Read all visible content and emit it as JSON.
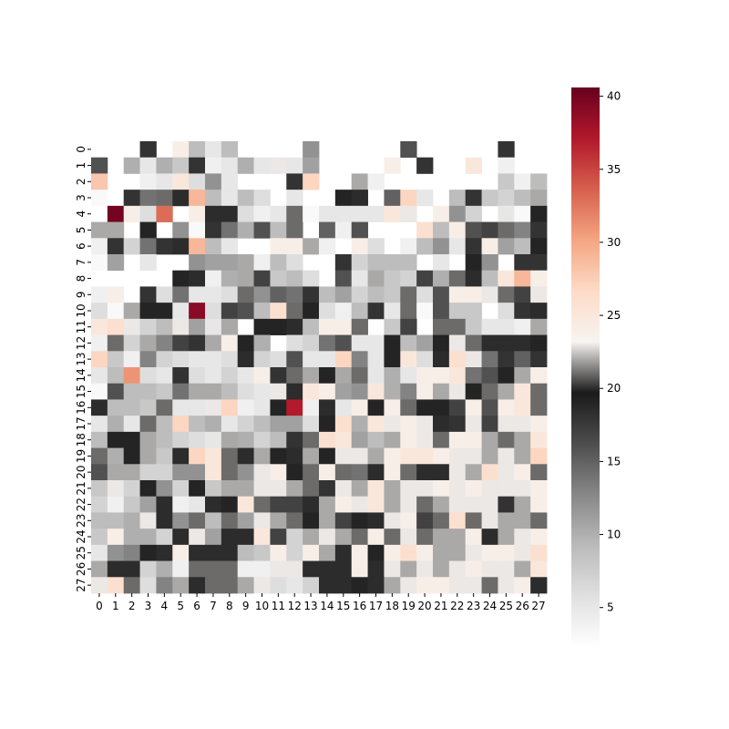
{
  "chart_data": {
    "type": "heatmap",
    "title": "",
    "xlabel": "",
    "ylabel": "",
    "x_labels": [
      "0",
      "1",
      "2",
      "3",
      "4",
      "5",
      "6",
      "7",
      "8",
      "9",
      "10",
      "11",
      "12",
      "13",
      "14",
      "15",
      "16",
      "17",
      "18",
      "19",
      "20",
      "21",
      "22",
      "23",
      "24",
      "25",
      "26",
      "27"
    ],
    "y_labels": [
      "0",
      "1",
      "2",
      "3",
      "4",
      "5",
      "6",
      "7",
      "8",
      "9",
      "10",
      "11",
      "12",
      "13",
      "14",
      "15",
      "16",
      "17",
      "18",
      "19",
      "20",
      "21",
      "22",
      "23",
      "24",
      "25",
      "26",
      "27"
    ],
    "colorbar": {
      "min": 2.3,
      "max": 40.6,
      "ticks": [
        5,
        10,
        15,
        20,
        25,
        30,
        35,
        40
      ],
      "colormap": "RdGy_r",
      "stops": [
        "#ffffff",
        "#e0e0e0",
        "#bababa",
        "#878787",
        "#4d4d4d",
        "#1a1a1a",
        "#f7f4f2",
        "#fddbc7",
        "#f4a582",
        "#d6604d",
        "#b2182b",
        "#67001f"
      ]
    },
    "missing_value_note": "",
    "values": [
      [
        null,
        null,
        null,
        18,
        null,
        24,
        9,
        5,
        9,
        null,
        null,
        null,
        null,
        12,
        null,
        null,
        null,
        null,
        null,
        16,
        null,
        null,
        null,
        null,
        null,
        18,
        null,
        null
      ],
      [
        16,
        null,
        10,
        5,
        10,
        8,
        18,
        4,
        5,
        10,
        5,
        23,
        5,
        11,
        null,
        null,
        null,
        null,
        24,
        null,
        18,
        null,
        null,
        25,
        null,
        4,
        null,
        null
      ],
      [
        28,
        null,
        null,
        4,
        5,
        25,
        6,
        12,
        5,
        null,
        null,
        null,
        18,
        27,
        null,
        null,
        22,
        4,
        null,
        null,
        null,
        null,
        null,
        null,
        null,
        8,
        4,
        9
      ],
      [
        3,
        null,
        18,
        14,
        21,
        20,
        29,
        9,
        5,
        9,
        6,
        null,
        5,
        null,
        null,
        19,
        20,
        null,
        15,
        27,
        5,
        null,
        9,
        18,
        8,
        7,
        9,
        22
      ],
      [
        null,
        40,
        24,
        6,
        33,
        null,
        24,
        20,
        20,
        6,
        4,
        5,
        21,
        3,
        5,
        5,
        5,
        5,
        25,
        23,
        null,
        24,
        12,
        7,
        null,
        5,
        3,
        19
      ],
      [
        22,
        22,
        null,
        19,
        null,
        12,
        3,
        18,
        14,
        10,
        16,
        9,
        21,
        null,
        15,
        4,
        16,
        null,
        null,
        null,
        26,
        9,
        24,
        16,
        17,
        21,
        13,
        18
      ],
      [
        4,
        18,
        7,
        14,
        18,
        20,
        29,
        9,
        5,
        null,
        null,
        24,
        24,
        22,
        4,
        null,
        24,
        6,
        null,
        4,
        9,
        12,
        5,
        18,
        24,
        11,
        9,
        19
      ],
      [
        3,
        11,
        null,
        5,
        null,
        null,
        12,
        11,
        11,
        22,
        4,
        9,
        6,
        null,
        null,
        18,
        7,
        9,
        9,
        9,
        null,
        5,
        null,
        19,
        12,
        null,
        18,
        18
      ],
      [
        null,
        null,
        null,
        null,
        null,
        19,
        20,
        4,
        10,
        22,
        17,
        8,
        9,
        6,
        null,
        16,
        5,
        22,
        8,
        7,
        17,
        10,
        21,
        20,
        9,
        25,
        29,
        24
      ],
      [
        4,
        24,
        null,
        18,
        6,
        14,
        5,
        5,
        6,
        21,
        12,
        15,
        14,
        18,
        9,
        11,
        7,
        9,
        8,
        21,
        6,
        16,
        24,
        24,
        23,
        21,
        17,
        23
      ],
      [
        6,
        3,
        22,
        19,
        19,
        5,
        39,
        6,
        17,
        16,
        9,
        26,
        21,
        19,
        6,
        4,
        9,
        18,
        5,
        21,
        3,
        16,
        8,
        8,
        null,
        6,
        18,
        20
      ],
      [
        25,
        26,
        23,
        7,
        9,
        23,
        11,
        5,
        22,
        null,
        19,
        19,
        20,
        9,
        24,
        24,
        21,
        null,
        8,
        17,
        null,
        21,
        21,
        8,
        5,
        5,
        4,
        22
      ],
      [
        4,
        21,
        7,
        22,
        13,
        17,
        18,
        22,
        24,
        19,
        10,
        null,
        6,
        7,
        14,
        16,
        5,
        5,
        19,
        9,
        11,
        19,
        23,
        21,
        20,
        20,
        20,
        19
      ],
      [
        27,
        8,
        4,
        13,
        7,
        6,
        5,
        5,
        6,
        20,
        7,
        6,
        16,
        5,
        5,
        27,
        13,
        5,
        19,
        25,
        6,
        20,
        26,
        23,
        14,
        18,
        15,
        18
      ],
      [
        5,
        9,
        31,
        6,
        5,
        18,
        6,
        5,
        7,
        5,
        24,
        18,
        21,
        22,
        19,
        22,
        21,
        5,
        10,
        5,
        24,
        24,
        25,
        14,
        16,
        19,
        22,
        24
      ],
      [
        3,
        16,
        9,
        9,
        8,
        14,
        22,
        22,
        9,
        6,
        5,
        23,
        20,
        25,
        24,
        11,
        12,
        25,
        10,
        13,
        24,
        22,
        23,
        19,
        21,
        22,
        25,
        21
      ],
      [
        20,
        9,
        9,
        8,
        21,
        5,
        5,
        23,
        27,
        4,
        5,
        19,
        37,
        4,
        20,
        5,
        24,
        19,
        24,
        21,
        19,
        19,
        17,
        24,
        16,
        24,
        25,
        21
      ],
      [
        5,
        10,
        5,
        21,
        9,
        27,
        9,
        10,
        5,
        7,
        9,
        11,
        11,
        6,
        19,
        26,
        10,
        25,
        23,
        24,
        23,
        20,
        18,
        23,
        17,
        23,
        23,
        24
      ],
      [
        9,
        19,
        19,
        22,
        9,
        7,
        6,
        5,
        22,
        10,
        7,
        9,
        18,
        21,
        26,
        25,
        11,
        9,
        22,
        24,
        23,
        21,
        24,
        24,
        22,
        21,
        22,
        25
      ],
      [
        21,
        10,
        19,
        22,
        8,
        20,
        27,
        25,
        21,
        20,
        22,
        19,
        20,
        22,
        19,
        23,
        23,
        22,
        24,
        25,
        25,
        24,
        23,
        23,
        22,
        23,
        22,
        27
      ],
      [
        16,
        22,
        22,
        7,
        7,
        12,
        12,
        25,
        21,
        12,
        23,
        24,
        19,
        21,
        24,
        21,
        14,
        20,
        24,
        21,
        20,
        20,
        23,
        22,
        26,
        23,
        24,
        21
      ],
      [
        8,
        23,
        7,
        19,
        12,
        7,
        19,
        8,
        22,
        22,
        23,
        23,
        22,
        21,
        18,
        23,
        22,
        25,
        22,
        23,
        23,
        24,
        23,
        24,
        23,
        23,
        23,
        24
      ],
      [
        7,
        4,
        8,
        11,
        20,
        4,
        5,
        20,
        19,
        25,
        21,
        17,
        17,
        20,
        22,
        24,
        23,
        25,
        22,
        23,
        21,
        22,
        23,
        23,
        23,
        18,
        22,
        24
      ],
      [
        9,
        9,
        10,
        23,
        20,
        12,
        21,
        9,
        21,
        11,
        23,
        22,
        21,
        19,
        22,
        17,
        19,
        20,
        23,
        24,
        17,
        21,
        26,
        21,
        23,
        22,
        22,
        21
      ],
      [
        8,
        24,
        10,
        10,
        7,
        20,
        23,
        11,
        20,
        20,
        25,
        17,
        7,
        22,
        23,
        22,
        21,
        24,
        21,
        23,
        21,
        22,
        22,
        24,
        20,
        22,
        23,
        24
      ],
      [
        5,
        12,
        13,
        19,
        20,
        24,
        20,
        20,
        20,
        9,
        8,
        24,
        7,
        24,
        22,
        20,
        24,
        19,
        24,
        26,
        24,
        22,
        22,
        23,
        24,
        24,
        23,
        26
      ],
      [
        22,
        20,
        20,
        7,
        10,
        4,
        21,
        21,
        21,
        4,
        4,
        23,
        23,
        20,
        20,
        20,
        24,
        20,
        23,
        22,
        23,
        22,
        23,
        24,
        23,
        23,
        22,
        25
      ],
      [
        23,
        26,
        21,
        6,
        13,
        22,
        20,
        21,
        21,
        22,
        23,
        6,
        5,
        7,
        20,
        20,
        19,
        20,
        22,
        23,
        24,
        24,
        23,
        23,
        21,
        23,
        24,
        20
      ]
    ]
  }
}
